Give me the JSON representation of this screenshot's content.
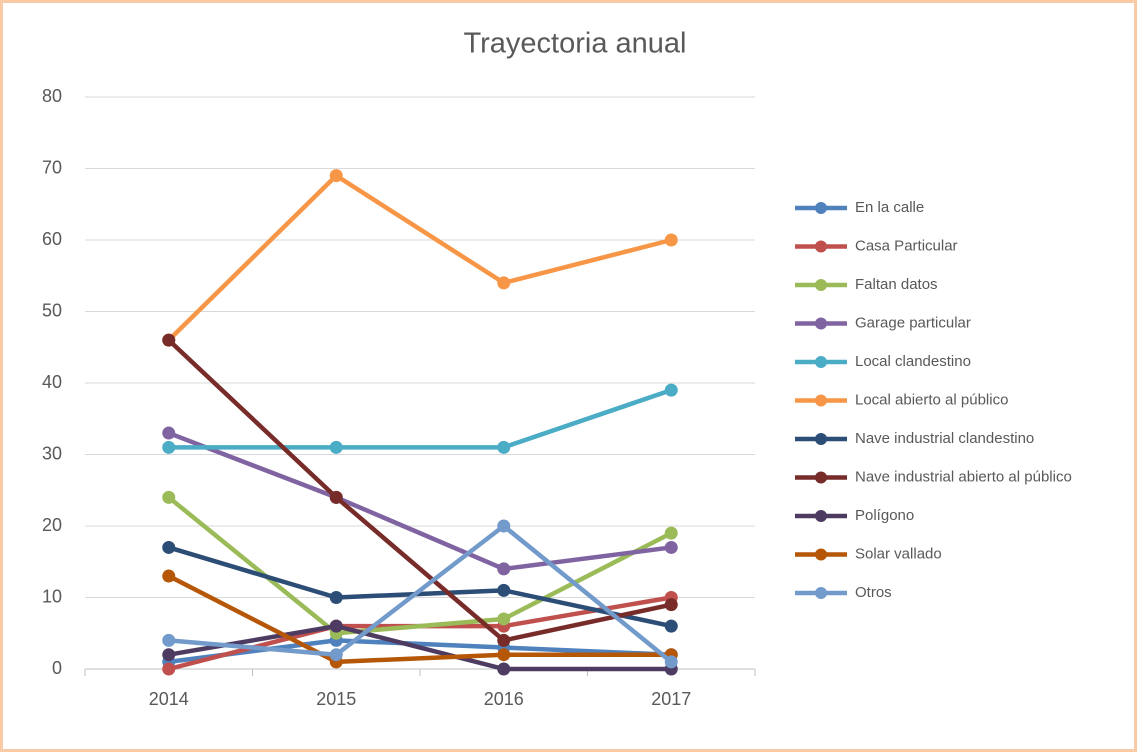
{
  "chart_data": {
    "type": "line",
    "title": "Trayectoria anual",
    "categories": [
      "2014",
      "2015",
      "2016",
      "2017"
    ],
    "ylim": [
      0,
      80
    ],
    "yticks": [
      0,
      10,
      20,
      30,
      40,
      50,
      60,
      70,
      80
    ],
    "grid": true,
    "legend": "right",
    "series": [
      {
        "name": "En la calle",
        "color": "#4f81bd",
        "values": [
          1,
          4,
          3,
          2
        ]
      },
      {
        "name": "Casa Particular",
        "color": "#c0504d",
        "values": [
          0,
          6,
          6,
          10
        ]
      },
      {
        "name": "Faltan datos",
        "color": "#9bbb59",
        "values": [
          24,
          5,
          7,
          19
        ]
      },
      {
        "name": "Garage particular",
        "color": "#8064a2",
        "values": [
          33,
          24,
          14,
          17
        ]
      },
      {
        "name": "Local clandestino",
        "color": "#4bacc6",
        "values": [
          31,
          31,
          31,
          39
        ]
      },
      {
        "name": "Local abierto al público",
        "color": "#f79646",
        "values": [
          46,
          69,
          54,
          60
        ]
      },
      {
        "name": "Nave industrial clandestino",
        "color": "#2c4d75",
        "values": [
          17,
          10,
          11,
          6
        ]
      },
      {
        "name": "Nave industrial abierto al público",
        "color": "#772c2a",
        "values": [
          46,
          24,
          4,
          9
        ]
      },
      {
        "name": "Polígono",
        "color": "#4d3b62",
        "values": [
          2,
          6,
          0,
          0
        ]
      },
      {
        "name": "Solar vallado",
        "color": "#b65708",
        "values": [
          13,
          1,
          2,
          2
        ]
      },
      {
        "name": "Otros",
        "color": "#729aca",
        "values": [
          4,
          2,
          20,
          1
        ]
      }
    ]
  }
}
